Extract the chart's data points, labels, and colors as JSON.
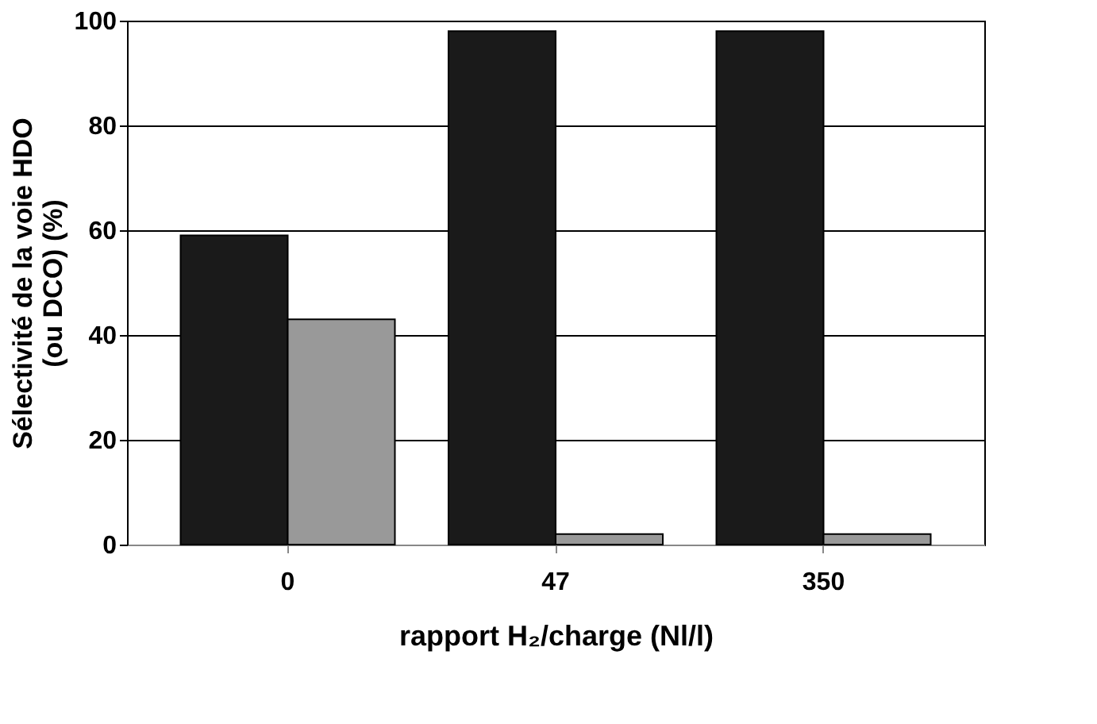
{
  "chart_data": {
    "type": "bar",
    "categories": [
      "0",
      "47",
      "350"
    ],
    "series": [
      {
        "color": "#1a1a1a",
        "values": [
          59,
          98,
          98
        ]
      },
      {
        "color": "#999999",
        "values": [
          43,
          2,
          2
        ]
      }
    ],
    "ylabel": "Sélectivité de la voie HDO\n(ou DCO) (%)",
    "xlabel": "rapport H₂/charge (Nl/l)",
    "ylim": [
      0,
      100
    ],
    "yticks": [
      0,
      20,
      40,
      60,
      80,
      100
    ],
    "grid": "y",
    "legend": false
  }
}
